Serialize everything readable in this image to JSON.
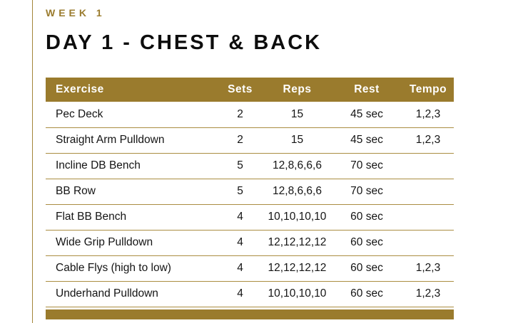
{
  "header": {
    "week_label": "WEEK 1",
    "day_title": "DAY 1 - CHEST & BACK"
  },
  "theme": {
    "accent_gold": "#9A7B2D",
    "row_divider_gold": "#AA8D41",
    "header_text": "#FFFFFF",
    "body_text": "#141414"
  },
  "table": {
    "columns": [
      "Exercise",
      "Sets",
      "Reps",
      "Rest",
      "Tempo"
    ],
    "rows": [
      [
        "Pec Deck",
        "2",
        "15",
        "45 sec",
        "1,2,3"
      ],
      [
        "Straight Arm Pulldown",
        "2",
        "15",
        "45 sec",
        "1,2,3"
      ],
      [
        "Incline DB Bench",
        "5",
        "12,8,6,6,6",
        "70 sec",
        ""
      ],
      [
        "BB Row",
        "5",
        "12,8,6,6,6",
        "70 sec",
        ""
      ],
      [
        "Flat BB Bench",
        "4",
        "10,10,10,10",
        "60 sec",
        ""
      ],
      [
        "Wide Grip Pulldown",
        "4",
        "12,12,12,12",
        "60 sec",
        ""
      ],
      [
        "Cable Flys (high to low)",
        "4",
        "12,12,12,12",
        "60 sec",
        "1,2,3"
      ],
      [
        "Underhand Pulldown",
        "4",
        "10,10,10,10",
        "60 sec",
        "1,2,3"
      ]
    ]
  }
}
